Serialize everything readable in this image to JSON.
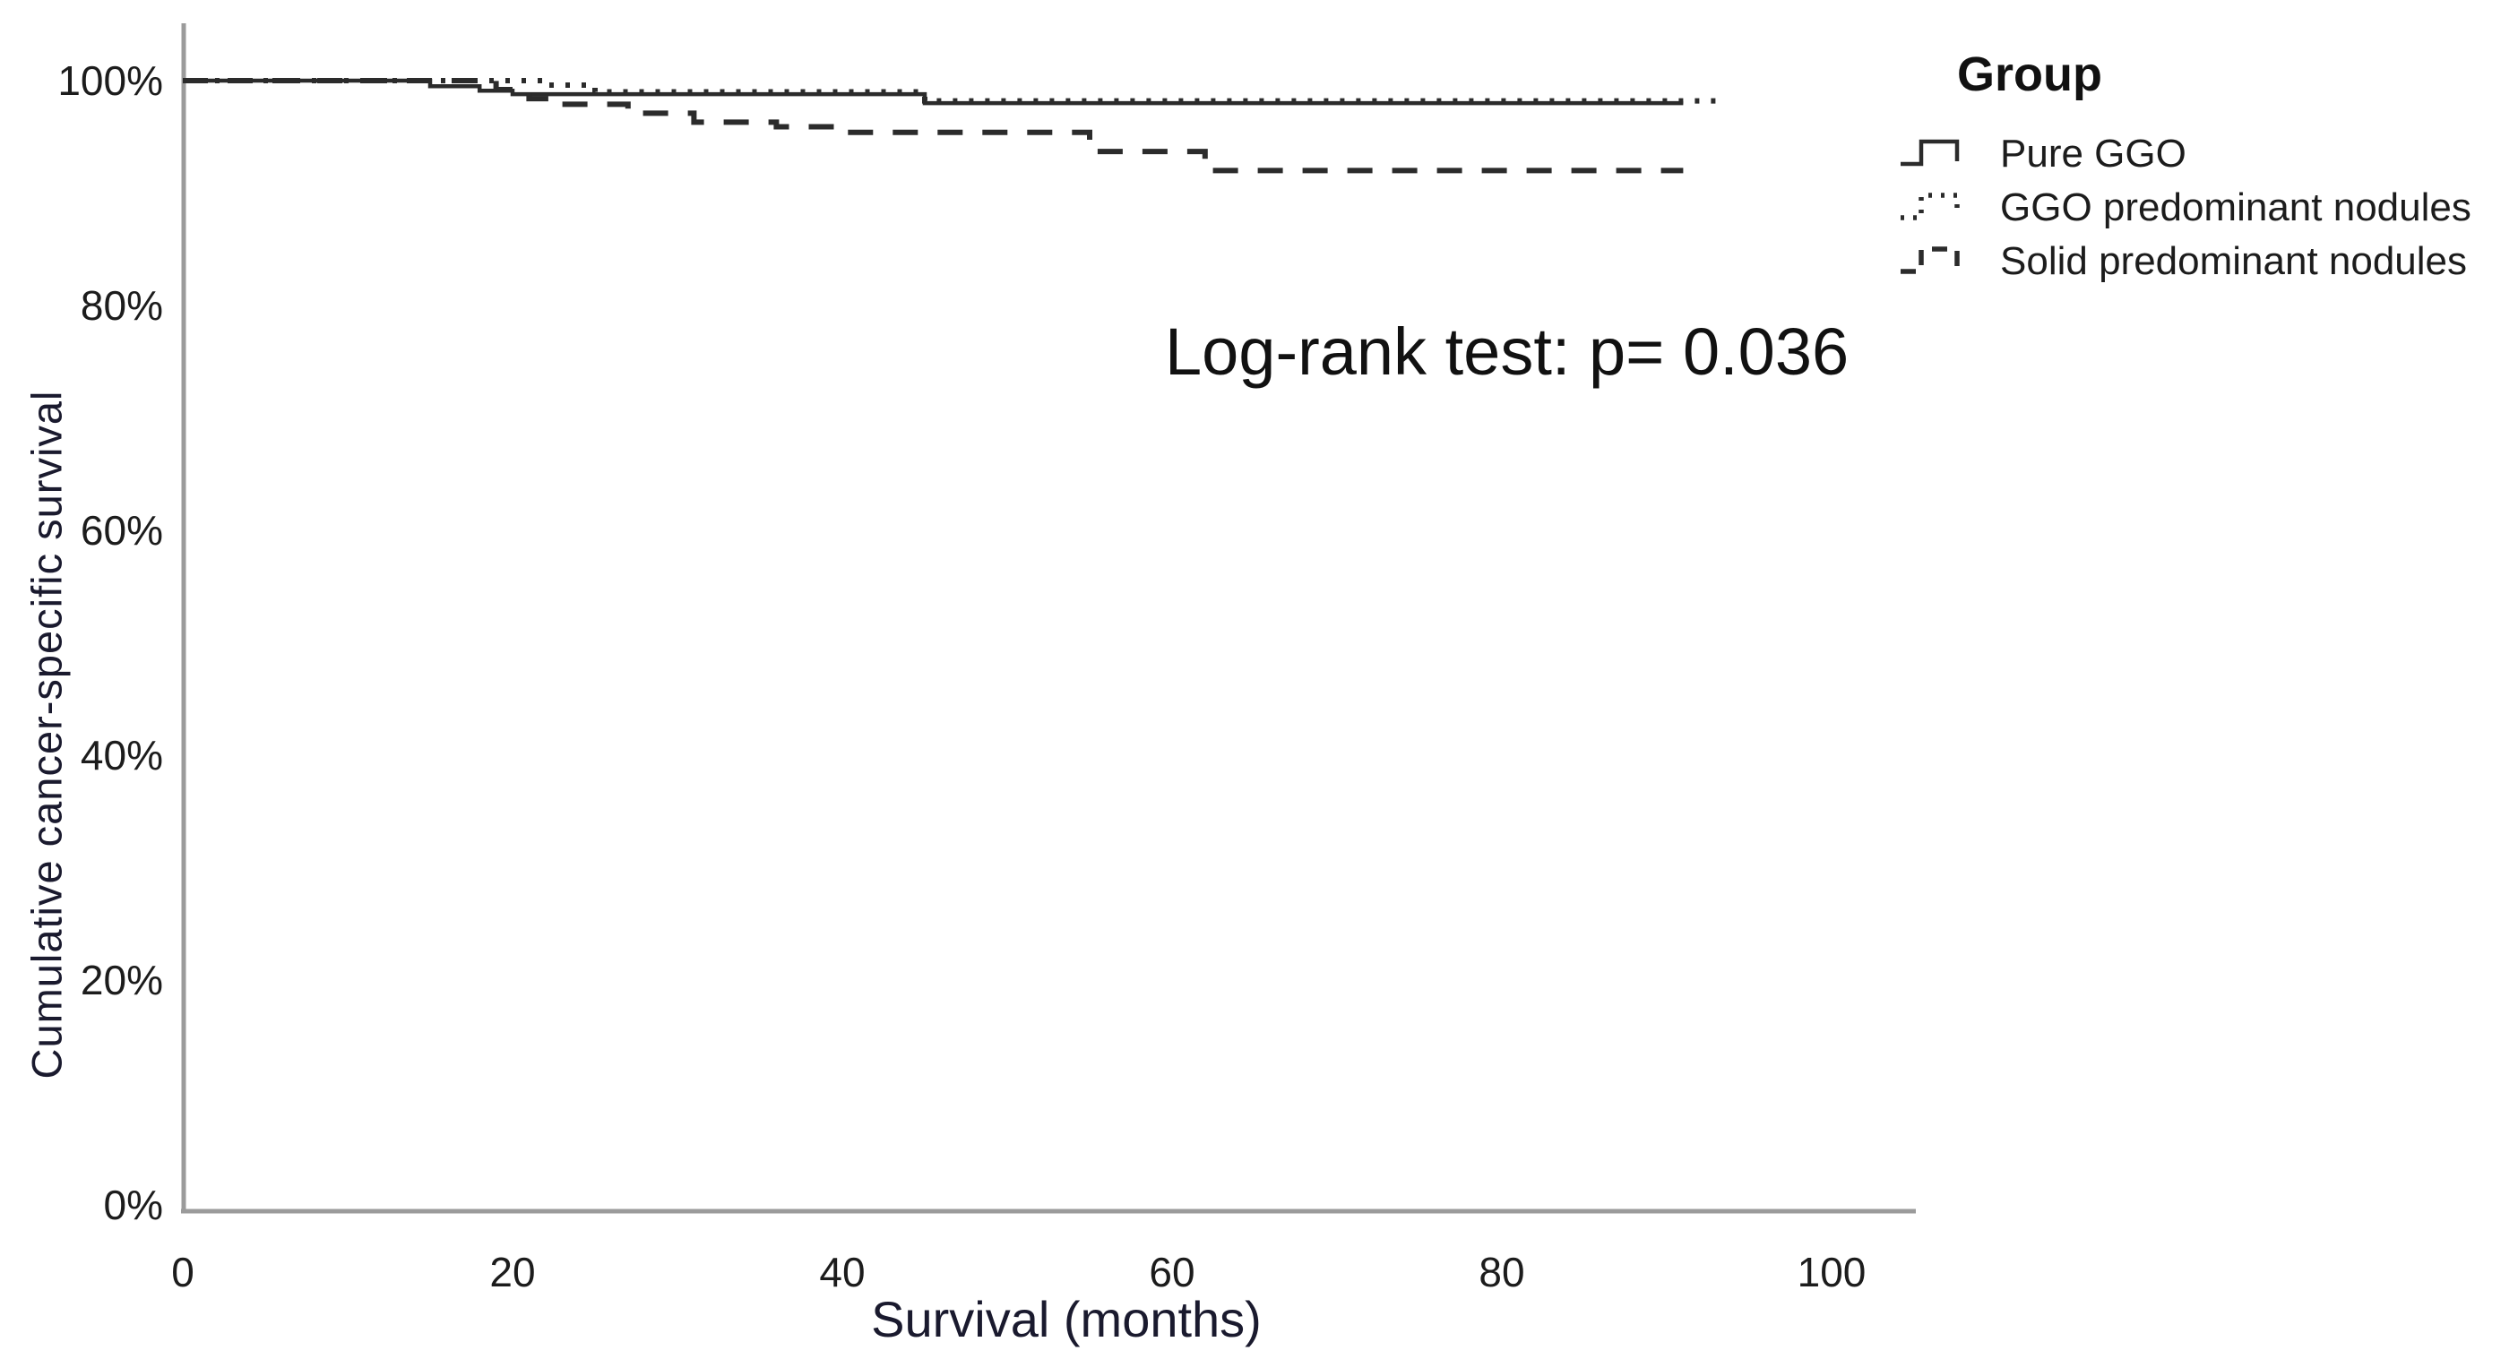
{
  "figure": {
    "background": "#ffffff",
    "ink_color": "#2b2b2b",
    "spine_color": "#9b9b9b"
  },
  "chart_data": {
    "type": "line",
    "subtype": "kaplan-meier-step",
    "title": "",
    "xlabel": "Survival (months)",
    "ylabel": "Cumulative cancer-specific survival",
    "xlim": [
      0,
      105
    ],
    "ylim": [
      0,
      100
    ],
    "grid": false,
    "x_ticks": [
      0,
      20,
      40,
      60,
      80,
      100
    ],
    "x_tick_labels": [
      "0",
      "20",
      "40",
      "60",
      "80",
      "100"
    ],
    "y_ticks": [
      0,
      20,
      40,
      60,
      80,
      100
    ],
    "y_tick_labels": [
      "0%",
      "20%",
      "40%",
      "60%",
      "80%",
      "100%"
    ],
    "annotation": {
      "text": "Log-rank test: p= 0.036",
      "x_months": 60,
      "y_pct": 76
    },
    "legend": {
      "title": "Group",
      "position": "outside-top-right",
      "entries": [
        {
          "label": "Pure GGO",
          "style": "solid"
        },
        {
          "label": "GGO predominant nodules",
          "style": "dotted"
        },
        {
          "label": "Solid predominant nodules",
          "style": "dashed"
        }
      ]
    },
    "series": [
      {
        "name": "Pure GGO",
        "style": "solid",
        "color": "#2b2b2b",
        "points": [
          [
            0,
            100
          ],
          [
            15,
            100
          ],
          [
            15,
            99.5
          ],
          [
            18,
            99.5
          ],
          [
            18,
            99.1
          ],
          [
            20,
            99.1
          ],
          [
            20,
            98.8
          ],
          [
            45,
            98.8
          ],
          [
            45,
            98.0
          ],
          [
            91,
            98.0
          ]
        ]
      },
      {
        "name": "GGO predominant nodules",
        "style": "dotted",
        "color": "#2b2b2b",
        "points": [
          [
            0,
            100
          ],
          [
            22,
            100
          ],
          [
            22,
            99.6
          ],
          [
            25,
            99.6
          ],
          [
            25,
            99.0
          ],
          [
            45,
            99.0
          ],
          [
            45,
            98.2
          ],
          [
            93,
            98.2
          ]
        ]
      },
      {
        "name": "Solid predominant nodules",
        "style": "dashed",
        "color": "#2b2b2b",
        "points": [
          [
            0,
            100
          ],
          [
            19,
            100
          ],
          [
            19,
            99.2
          ],
          [
            21,
            99.2
          ],
          [
            21,
            98.4
          ],
          [
            23,
            98.4
          ],
          [
            23,
            97.9
          ],
          [
            27,
            97.9
          ],
          [
            27,
            97.1
          ],
          [
            31,
            97.1
          ],
          [
            31,
            96.3
          ],
          [
            36,
            96.3
          ],
          [
            36,
            95.9
          ],
          [
            40,
            95.9
          ],
          [
            40,
            95.4
          ],
          [
            55,
            95.4
          ],
          [
            55,
            93.7
          ],
          [
            62,
            93.7
          ],
          [
            62,
            92.0
          ],
          [
            91,
            92.0
          ]
        ]
      }
    ]
  }
}
